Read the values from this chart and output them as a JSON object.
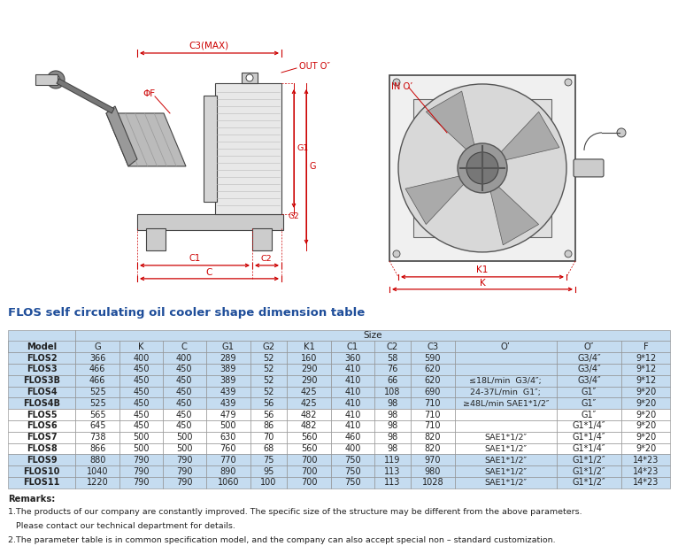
{
  "title": "FLOS self circulating oil cooler shape dimension table",
  "title_color": "#1F4E9A",
  "header_row2": [
    "Model",
    "G",
    "K",
    "C",
    "G1",
    "G2",
    "K1",
    "C1",
    "C2",
    "C3",
    "O’",
    "O″",
    "F"
  ],
  "rows": [
    [
      "FLOS2",
      "366",
      "400",
      "400",
      "289",
      "52",
      "160",
      "360",
      "58",
      "590",
      "",
      "G3/4″",
      "9*12"
    ],
    [
      "FLOS3",
      "466",
      "450",
      "450",
      "389",
      "52",
      "290",
      "410",
      "76",
      "620",
      "",
      "G3/4″",
      "9*12"
    ],
    [
      "FLOS3B",
      "466",
      "450",
      "450",
      "389",
      "52",
      "290",
      "410",
      "66",
      "620",
      "≤18L/min  G3/4″;",
      "G3/4″",
      "9*12"
    ],
    [
      "FLOS4",
      "525",
      "450",
      "450",
      "439",
      "52",
      "425",
      "410",
      "108",
      "690",
      "24-37L/min  G1″;",
      "G1″",
      "9*20"
    ],
    [
      "FLOS4B",
      "525",
      "450",
      "450",
      "439",
      "56",
      "425",
      "410",
      "98",
      "710",
      "≥48L/min SAE1*1/2″",
      "G1″",
      "9*20"
    ],
    [
      "FLOS5",
      "565",
      "450",
      "450",
      "479",
      "56",
      "482",
      "410",
      "98",
      "710",
      "",
      "G1″",
      "9*20"
    ],
    [
      "FLOS6",
      "645",
      "450",
      "450",
      "500",
      "86",
      "482",
      "410",
      "98",
      "710",
      "",
      "G1*1/4″",
      "9*20"
    ],
    [
      "FLOS7",
      "738",
      "500",
      "500",
      "630",
      "70",
      "560",
      "460",
      "98",
      "820",
      "SAE1*1/2″",
      "G1*1/4″",
      "9*20"
    ],
    [
      "FLOS8",
      "866",
      "500",
      "500",
      "760",
      "68",
      "560",
      "400",
      "98",
      "820",
      "SAE1*1/2″",
      "G1*1/4″",
      "9*20"
    ],
    [
      "FLOS9",
      "880",
      "790",
      "790",
      "770",
      "75",
      "700",
      "750",
      "119",
      "970",
      "SAE1*1/2″",
      "G1*1/2″",
      "14*23"
    ],
    [
      "FLOS10",
      "1040",
      "790",
      "790",
      "890",
      "95",
      "700",
      "750",
      "113",
      "980",
      "SAE1*1/2″",
      "G1*1/2″",
      "14*23"
    ],
    [
      "FLOS11",
      "1220",
      "790",
      "790",
      "1060",
      "100",
      "700",
      "750",
      "113",
      "1028",
      "SAE1*1/2″",
      "G1*1/2″",
      "14*23"
    ]
  ],
  "highlighted_rows": [
    0,
    1,
    2,
    3,
    4,
    9,
    10,
    11
  ],
  "highlight_color": "#C5DCF0",
  "normal_color": "#FFFFFF",
  "header_bg": "#C5DCF0",
  "model_header_bg": "#C5DCF0",
  "border_color": "#777777",
  "text_color": "#222222",
  "red": "#CC0000",
  "remarks": [
    "Remarks:",
    "1.The products of our company are constantly improved. The specific size of the structure may be different from the above parameters.",
    "   Please contact our technical department for details.",
    "2.The parameter table is in common specification model, and the company can also accept special non – standard customization."
  ]
}
